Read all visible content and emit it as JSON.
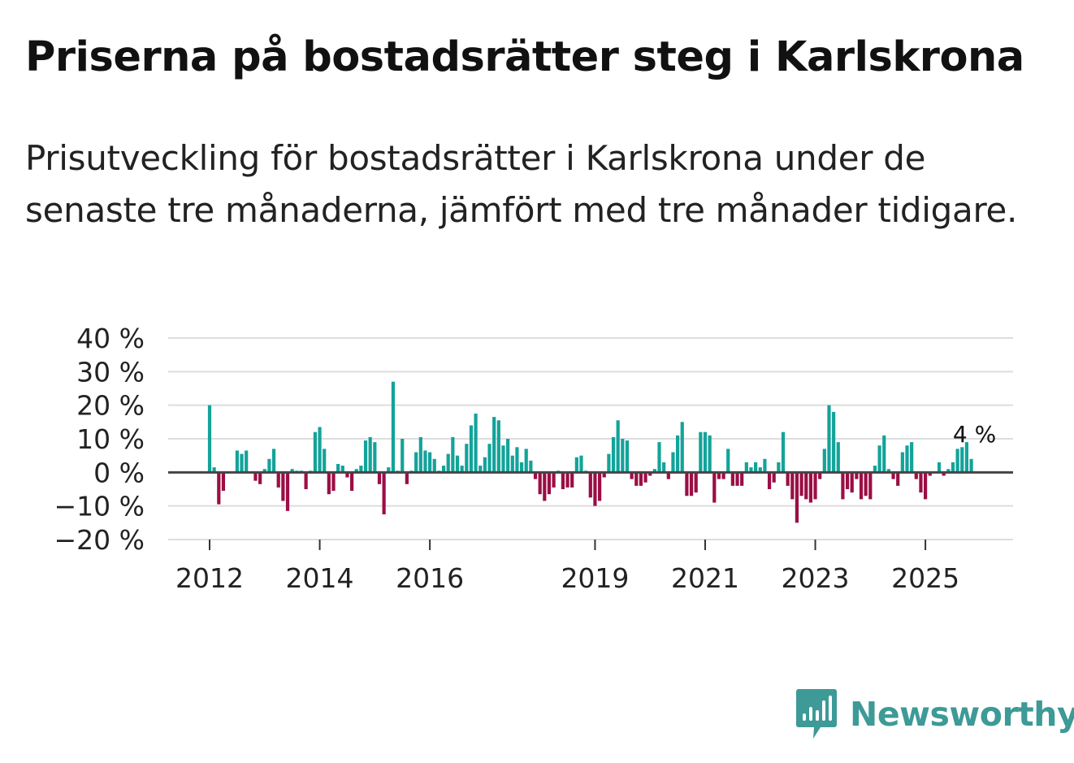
{
  "title": "Priserna på bostadsrätter steg i Karlskrona",
  "subtitle": "Prisutveckling för bostadsrätter i Karlskrona under de senaste tre månaderna, jämfört med tre månader tidigare.",
  "logo": {
    "text": "Newsworthy",
    "icon": "bar-chart-icon",
    "color": "#3d9a97"
  },
  "colors": {
    "positive": "#13a39a",
    "negative": "#9b0e45",
    "zero_line": "#444444",
    "grid": "#dddddd"
  },
  "chart_data": {
    "type": "bar",
    "title": "",
    "xlabel": "",
    "ylabel": "",
    "ylim": [
      -20,
      40
    ],
    "y_ticks": [
      40,
      30,
      20,
      10,
      0,
      -10,
      -20
    ],
    "y_tick_labels": [
      "40 %",
      "30 %",
      "20 %",
      "10 %",
      "0 %",
      "−10 %",
      "−20 %"
    ],
    "x_tick_labels": [
      "2012",
      "2014",
      "2016",
      "2019",
      "2021",
      "2023",
      "2025"
    ],
    "x_tick_index": [
      0,
      24,
      48,
      84,
      108,
      132,
      156
    ],
    "annotation": {
      "text": "4 %",
      "index": 166
    },
    "start": "2012-01",
    "values": [
      20,
      1.5,
      -9.5,
      -5.5,
      0,
      0,
      6.5,
      5.5,
      6.5,
      0,
      -2.5,
      -3.5,
      1,
      4,
      7,
      -4.5,
      -8.5,
      -11.5,
      1,
      0.5,
      0.5,
      -5,
      0.5,
      12,
      13.5,
      7,
      -6.5,
      -5.5,
      2.5,
      2,
      -1.5,
      -5.5,
      1,
      2,
      9.5,
      10.5,
      9,
      -3.5,
      -12.5,
      1.5,
      27,
      0.5,
      10,
      -3.5,
      0.5,
      6,
      10.5,
      6.5,
      6,
      4,
      0.5,
      2,
      5.5,
      10.5,
      5,
      2,
      8.5,
      14,
      17.5,
      2,
      4.5,
      8.5,
      16.5,
      15.5,
      8,
      10,
      5,
      7.5,
      3,
      7,
      3.5,
      -2,
      -6.5,
      -8.5,
      -6.5,
      -4.5,
      0.5,
      -5,
      -4.5,
      -4.5,
      4.5,
      5,
      0.5,
      -7.5,
      -10,
      -8.5,
      -1.5,
      5.5,
      10.5,
      15.5,
      10,
      9.5,
      -2,
      -4,
      -4,
      -3,
      -1,
      1,
      9,
      3,
      -2,
      6,
      11,
      15,
      -7,
      -7,
      -6,
      12,
      12,
      11,
      -9,
      -2,
      -2,
      7,
      -4,
      -4,
      -4,
      3,
      1.5,
      3,
      1.5,
      4,
      -5,
      -3,
      3,
      12,
      -4,
      -8,
      -15,
      -7,
      -8,
      -9,
      -8,
      -2,
      7,
      20,
      18,
      9,
      -8,
      -5,
      -6,
      -2,
      -8,
      -7,
      -8,
      2,
      8,
      11,
      1,
      -2,
      -4,
      6,
      8,
      9,
      -2,
      -6,
      -8,
      -1,
      0,
      3,
      -1,
      1,
      3,
      7,
      7.5,
      9,
      4
    ]
  }
}
